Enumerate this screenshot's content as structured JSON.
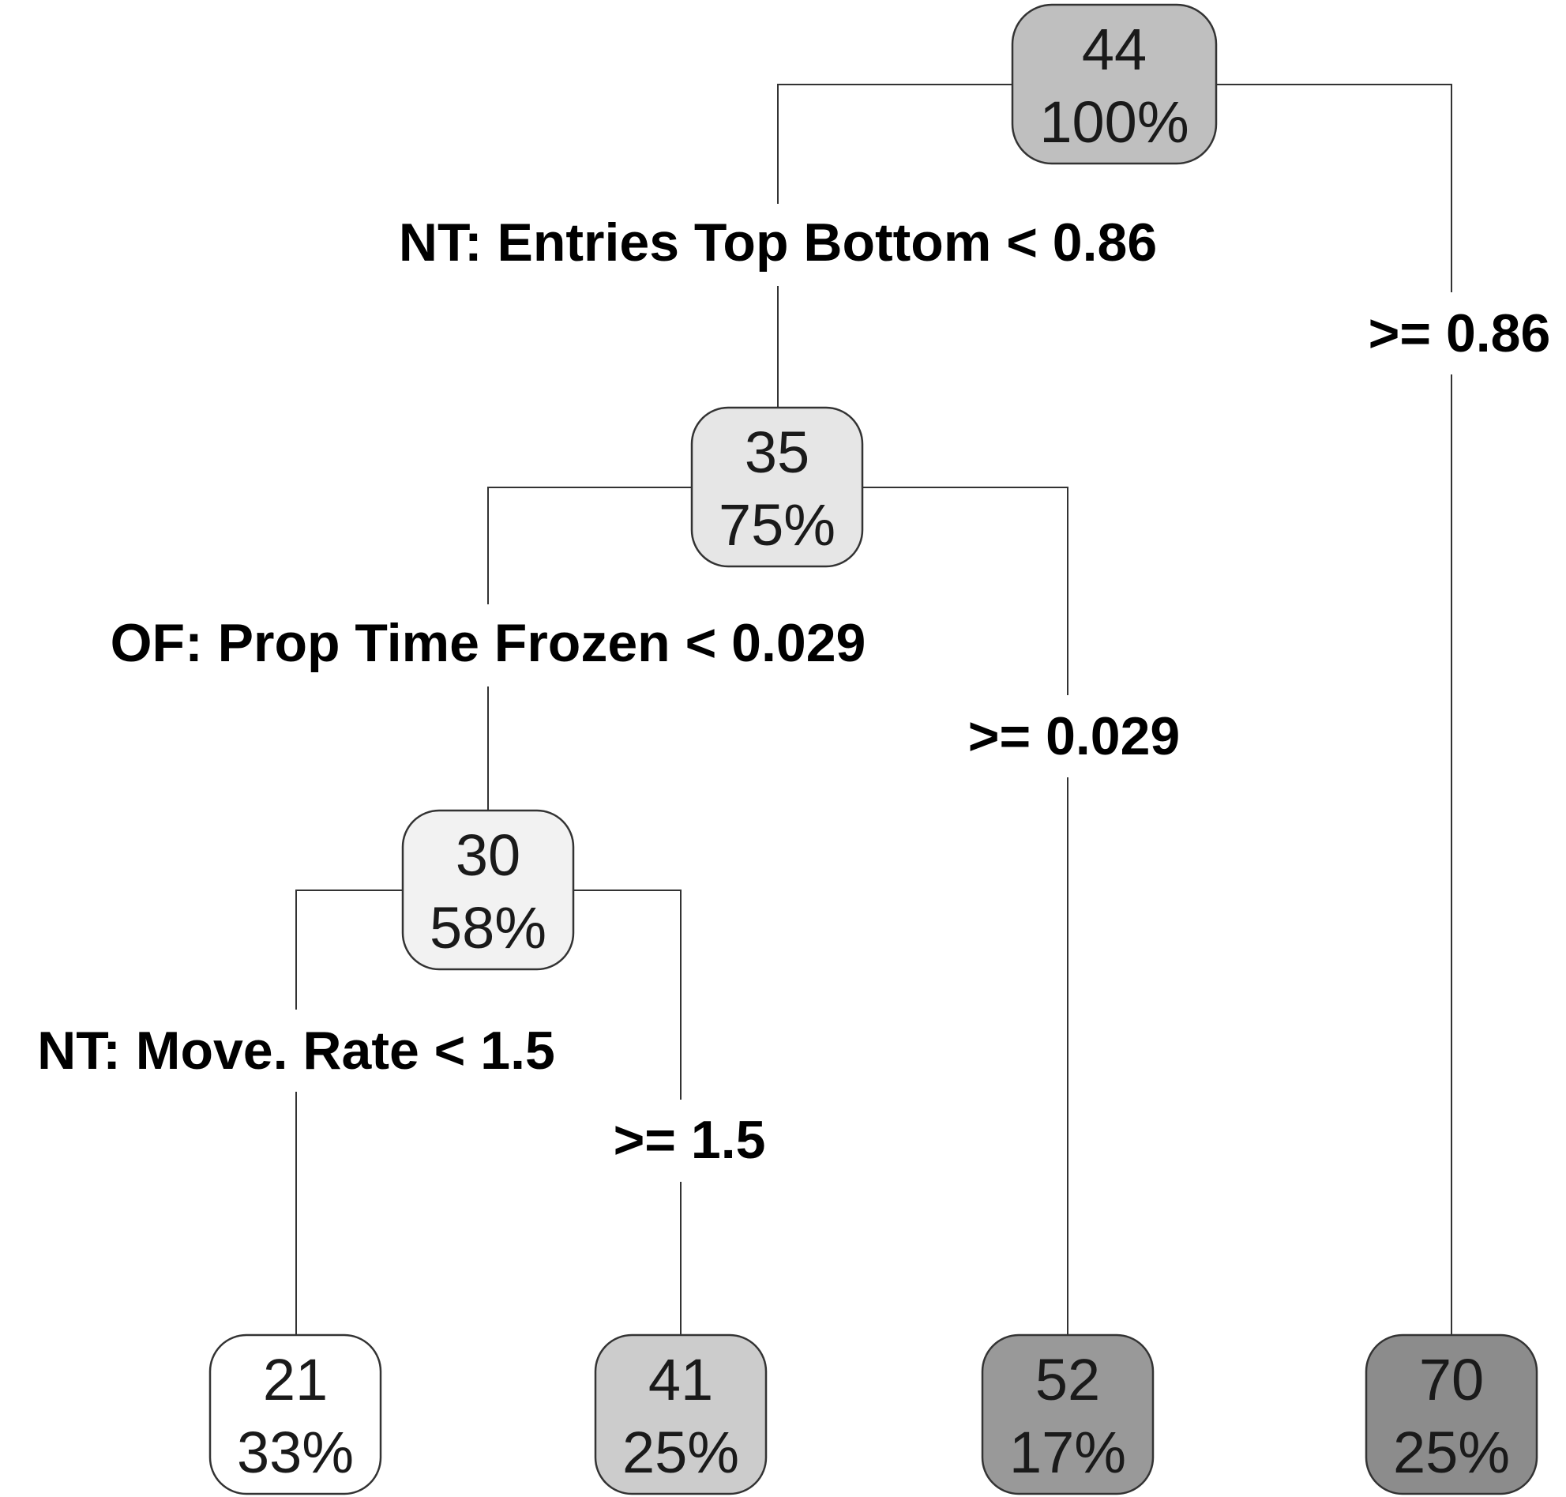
{
  "nodes": [
    {
      "id": "root",
      "value": "44",
      "percent": "100%",
      "fill": "#bfbfbf"
    },
    {
      "id": "n35",
      "value": "35",
      "percent": "75%",
      "fill": "#e6e6e6"
    },
    {
      "id": "n30",
      "value": "30",
      "percent": "58%",
      "fill": "#f2f2f2"
    },
    {
      "id": "leaf21",
      "value": "21",
      "percent": "33%",
      "fill": "#ffffff"
    },
    {
      "id": "leaf41",
      "value": "41",
      "percent": "25%",
      "fill": "#cccccc"
    },
    {
      "id": "leaf52",
      "value": "52",
      "percent": "17%",
      "fill": "#999999"
    },
    {
      "id": "leaf70",
      "value": "70",
      "percent": "25%",
      "fill": "#8c8c8c"
    }
  ],
  "splits": {
    "root_left": "NT: Entries Top Bottom < 0.86",
    "root_right": ">= 0.86",
    "n35_left": "OF: Prop Time Frozen < 0.029",
    "n35_right": ">= 0.029",
    "n30_left": "NT: Move. Rate < 1.5",
    "n30_right": ">= 1.5"
  }
}
